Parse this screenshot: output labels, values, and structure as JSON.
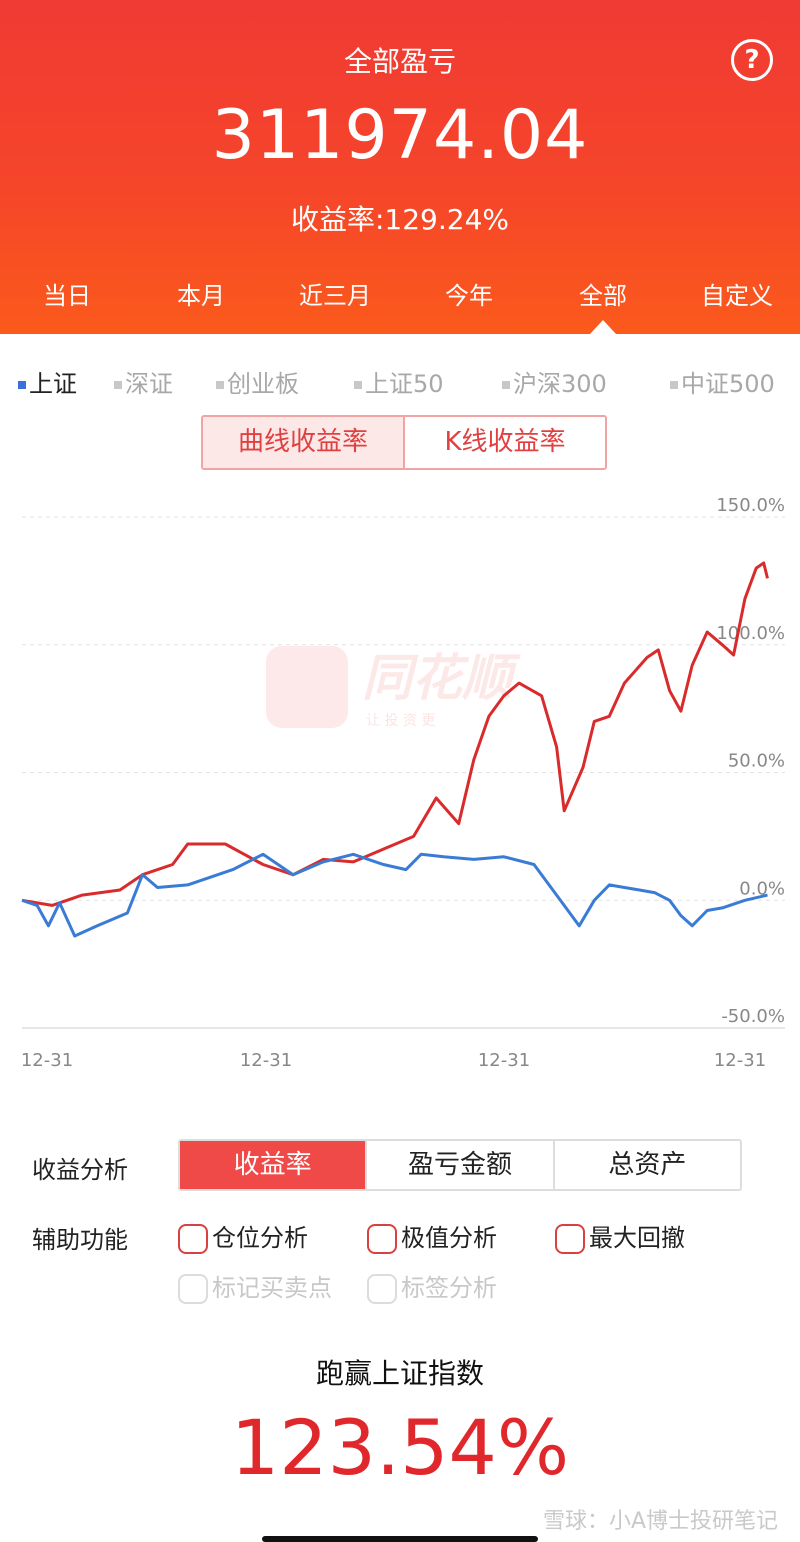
{
  "header": {
    "title": "全部盈亏",
    "help_icon": "?",
    "total": "311974.04",
    "rate_text": "收益率:129.24%"
  },
  "tabs": [
    {
      "label": "当日"
    },
    {
      "label": "本月"
    },
    {
      "label": "近三月"
    },
    {
      "label": "今年"
    },
    {
      "label": "全部"
    },
    {
      "label": "自定义"
    }
  ],
  "active_tab": "全部",
  "indices": [
    {
      "label": "上证",
      "active": true
    },
    {
      "label": "深证"
    },
    {
      "label": "创业板"
    },
    {
      "label": "上证50"
    },
    {
      "label": "沪深300"
    },
    {
      "label": "中证500"
    }
  ],
  "segment": {
    "curve": "曲线收益率",
    "kline": "K线收益率"
  },
  "watermark_logo": {
    "name": "同花顺",
    "slogan": "让 投 资 更"
  },
  "colors": {
    "header_red": "#f03a34",
    "portfolio_line": "#d92b2b",
    "index_line": "#3a7bd5",
    "accent": "#f04a48"
  },
  "chart_data": {
    "type": "line",
    "title": "",
    "y_tick_labels": [
      "150.0%",
      "100.0%",
      "50.0%",
      "0.0%",
      "-50.0%"
    ],
    "x_tick_labels": [
      "12-31",
      "12-31",
      "12-31",
      "12-31"
    ],
    "ylim": [
      -50,
      150
    ],
    "grid": true,
    "series": [
      {
        "color": "#d92b2b",
        "points": [
          [
            0,
            0
          ],
          [
            0.04,
            -2
          ],
          [
            0.08,
            2
          ],
          [
            0.13,
            4
          ],
          [
            0.16,
            10
          ],
          [
            0.2,
            14
          ],
          [
            0.22,
            22
          ],
          [
            0.27,
            22
          ],
          [
            0.32,
            14
          ],
          [
            0.36,
            10
          ],
          [
            0.4,
            16
          ],
          [
            0.44,
            15
          ],
          [
            0.48,
            20
          ],
          [
            0.52,
            25
          ],
          [
            0.55,
            40
          ],
          [
            0.58,
            30
          ],
          [
            0.6,
            55
          ],
          [
            0.62,
            72
          ],
          [
            0.64,
            80
          ],
          [
            0.66,
            85
          ],
          [
            0.69,
            80
          ],
          [
            0.71,
            60
          ],
          [
            0.72,
            35
          ],
          [
            0.745,
            52
          ],
          [
            0.76,
            70
          ],
          [
            0.78,
            72
          ],
          [
            0.8,
            85
          ],
          [
            0.83,
            95
          ],
          [
            0.845,
            98
          ],
          [
            0.86,
            82
          ],
          [
            0.875,
            74
          ],
          [
            0.89,
            92
          ],
          [
            0.91,
            105
          ],
          [
            0.93,
            100
          ],
          [
            0.945,
            96
          ],
          [
            0.96,
            118
          ],
          [
            0.975,
            130
          ],
          [
            0.985,
            132
          ],
          [
            0.99,
            126
          ]
        ]
      },
      {
        "color": "#3a7bd5",
        "points": [
          [
            0,
            0
          ],
          [
            0.02,
            -2
          ],
          [
            0.035,
            -10
          ],
          [
            0.05,
            -1
          ],
          [
            0.07,
            -14
          ],
          [
            0.1,
            -10
          ],
          [
            0.14,
            -5
          ],
          [
            0.16,
            10
          ],
          [
            0.18,
            5
          ],
          [
            0.22,
            6
          ],
          [
            0.28,
            12
          ],
          [
            0.32,
            18
          ],
          [
            0.36,
            10
          ],
          [
            0.4,
            15
          ],
          [
            0.44,
            18
          ],
          [
            0.48,
            14
          ],
          [
            0.51,
            12
          ],
          [
            0.53,
            18
          ],
          [
            0.56,
            17
          ],
          [
            0.6,
            16
          ],
          [
            0.64,
            17
          ],
          [
            0.68,
            14
          ],
          [
            0.71,
            2
          ],
          [
            0.73,
            -6
          ],
          [
            0.74,
            -10
          ],
          [
            0.76,
            0
          ],
          [
            0.78,
            6
          ],
          [
            0.8,
            5
          ],
          [
            0.82,
            4
          ],
          [
            0.84,
            3
          ],
          [
            0.86,
            0
          ],
          [
            0.875,
            -6
          ],
          [
            0.89,
            -10
          ],
          [
            0.91,
            -4
          ],
          [
            0.93,
            -3
          ],
          [
            0.96,
            0
          ],
          [
            0.99,
            2
          ]
        ]
      }
    ]
  },
  "analysis": {
    "label": "收益分析",
    "tabs": [
      "收益率",
      "盈亏金额",
      "总资产"
    ],
    "active": "收益率"
  },
  "aux": {
    "label": "辅助功能",
    "options": [
      "仓位分析",
      "极值分析",
      "最大回撤"
    ],
    "disabled_options": [
      "标记买卖点",
      "标签分析"
    ]
  },
  "beat": {
    "title": "跑赢上证指数",
    "value": "123.54%"
  },
  "watermark": "雪球：小A博士投研笔记"
}
